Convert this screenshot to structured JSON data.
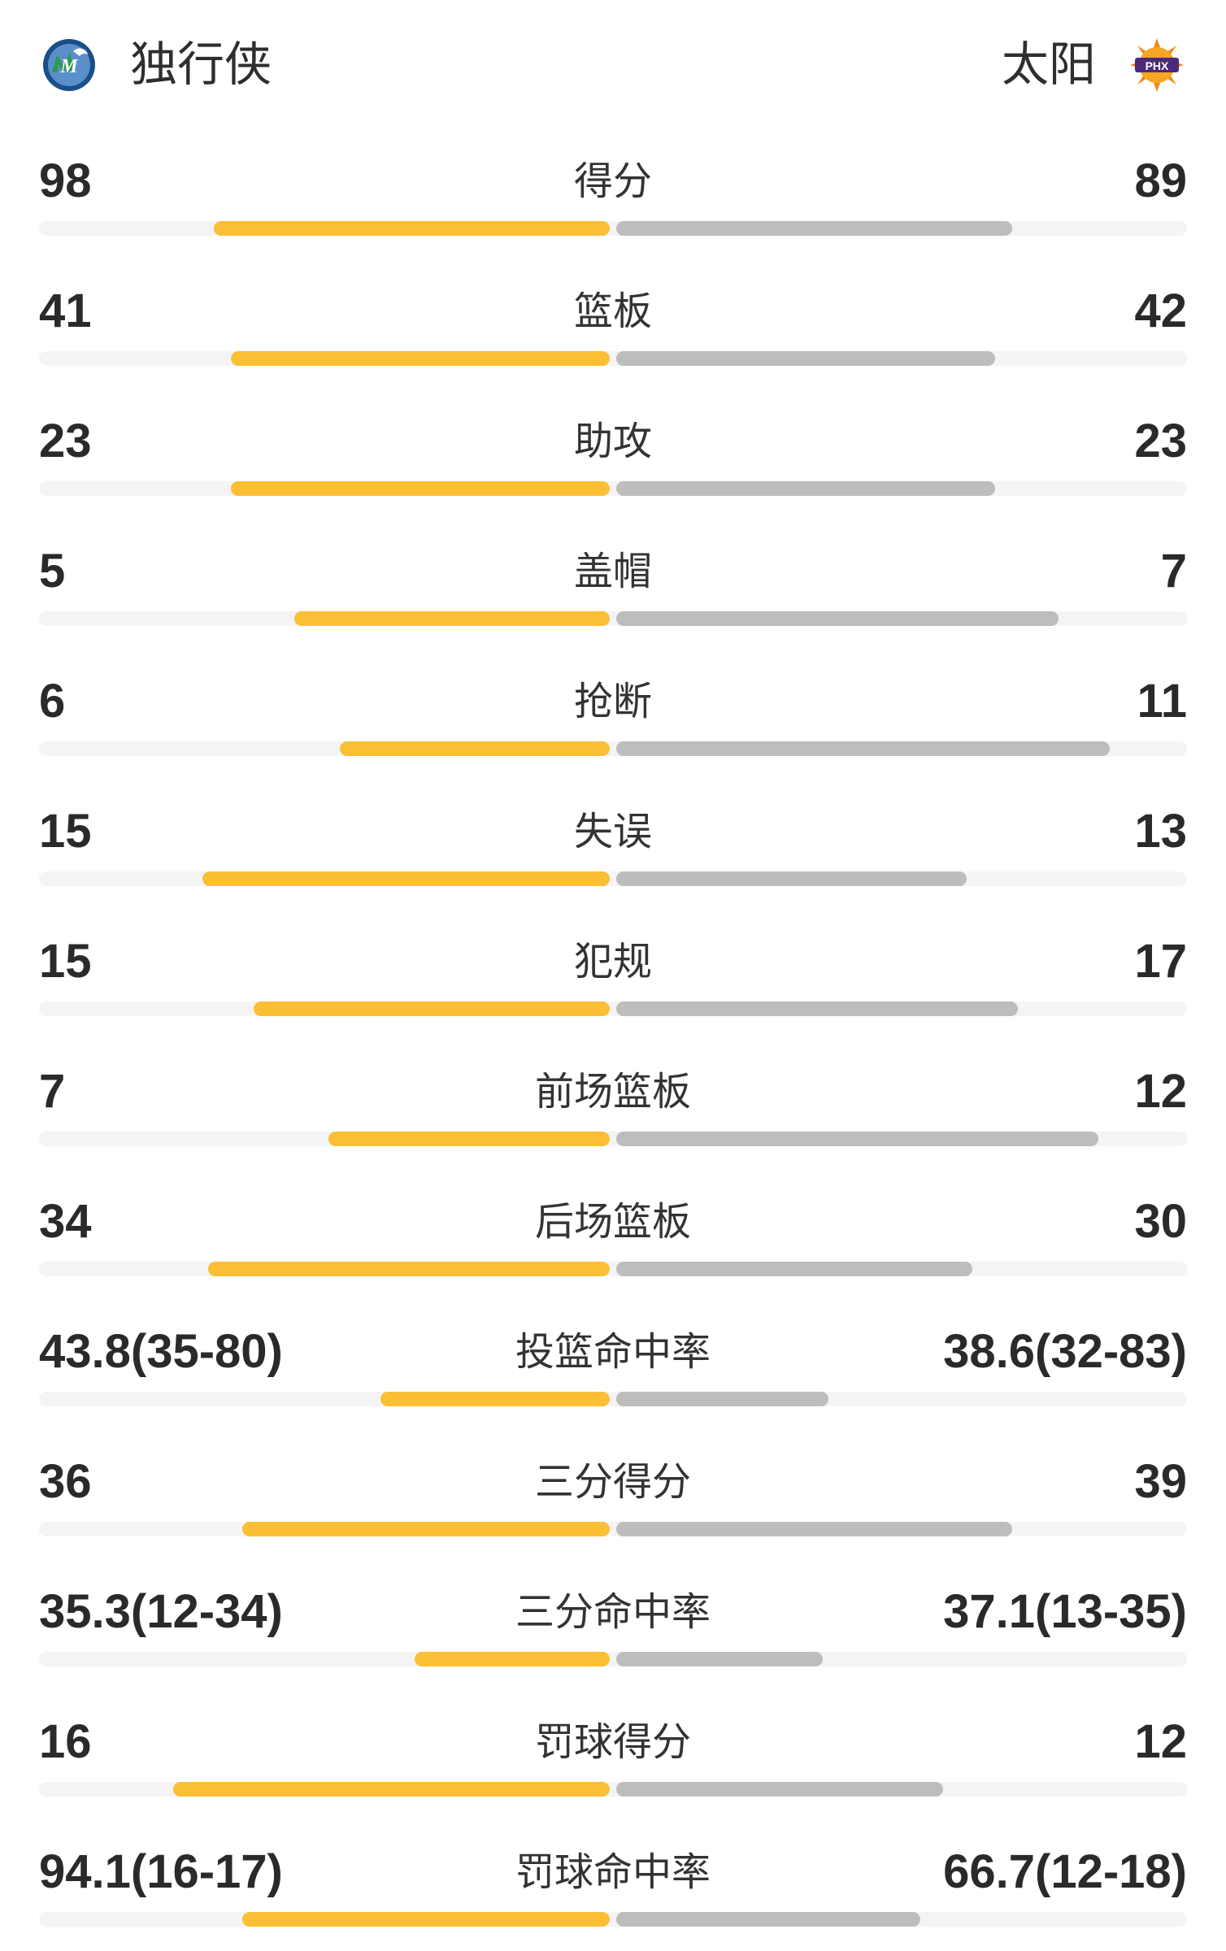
{
  "header": {
    "left_team": {
      "name": "独行侠",
      "logo_icon": "mavericks-logo-icon",
      "logo_text": "M"
    },
    "right_team": {
      "name": "太阳",
      "logo_icon": "suns-logo-icon",
      "logo_text": "PHX"
    }
  },
  "colors": {
    "left_bar": "#fbbf35",
    "right_bar": "#bdbdbd",
    "track": "#f4f4f6"
  },
  "stats": [
    {
      "label": "得分",
      "left": "98",
      "right": "89",
      "left_ratio": 0.69,
      "right_ratio": 0.69
    },
    {
      "label": "篮板",
      "left": "41",
      "right": "42",
      "left_ratio": 0.66,
      "right_ratio": 0.66
    },
    {
      "label": "助攻",
      "left": "23",
      "right": "23",
      "left_ratio": 0.66,
      "right_ratio": 0.66
    },
    {
      "label": "盖帽",
      "left": "5",
      "right": "7",
      "left_ratio": 0.55,
      "right_ratio": 0.77
    },
    {
      "label": "抢断",
      "left": "6",
      "right": "11",
      "left_ratio": 0.47,
      "right_ratio": 0.86
    },
    {
      "label": "失误",
      "left": "15",
      "right": "13",
      "left_ratio": 0.71,
      "right_ratio": 0.61
    },
    {
      "label": "犯规",
      "left": "15",
      "right": "17",
      "left_ratio": 0.62,
      "right_ratio": 0.7
    },
    {
      "label": "前场篮板",
      "left": "7",
      "right": "12",
      "left_ratio": 0.49,
      "right_ratio": 0.84
    },
    {
      "label": "后场篮板",
      "left": "34",
      "right": "30",
      "left_ratio": 0.7,
      "right_ratio": 0.62
    },
    {
      "label": "投篮命中率",
      "left": "43.8(35-80)",
      "right": "38.6(32-83)",
      "left_ratio": 0.4,
      "right_ratio": 0.37
    },
    {
      "label": "三分得分",
      "left": "36",
      "right": "39",
      "left_ratio": 0.64,
      "right_ratio": 0.69
    },
    {
      "label": "三分命中率",
      "left": "35.3(12-34)",
      "right": "37.1(13-35)",
      "left_ratio": 0.34,
      "right_ratio": 0.36
    },
    {
      "label": "罚球得分",
      "left": "16",
      "right": "12",
      "left_ratio": 0.76,
      "right_ratio": 0.57
    },
    {
      "label": "罚球命中率",
      "left": "94.1(16-17)",
      "right": "66.7(12-18)",
      "left_ratio": 0.64,
      "right_ratio": 0.53
    }
  ]
}
